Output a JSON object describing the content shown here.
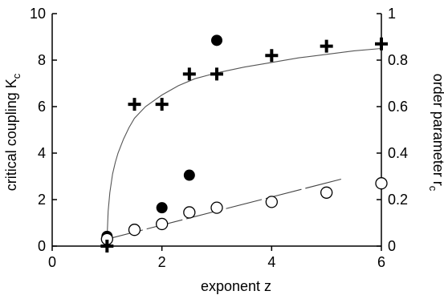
{
  "chart_data": {
    "type": "scatter",
    "xlabel": "exponent z",
    "ylabel_left": {
      "main": "critical coupling K",
      "sub": "c"
    },
    "ylabel_right": {
      "main": "order parameter r",
      "sub": "c"
    },
    "xlim": [
      0,
      6
    ],
    "ylim_left": [
      0,
      10
    ],
    "ylim_right": [
      0,
      1
    ],
    "grid": false,
    "xticks": [
      0,
      2,
      4,
      6
    ],
    "xtick_labels": [
      "0",
      "2",
      "4",
      "6"
    ],
    "yticks_left": [
      0,
      2,
      4,
      6,
      8,
      10
    ],
    "ytick_labels_left": [
      "0",
      "2",
      "4",
      "6",
      "8",
      "10"
    ],
    "yticks_right": [
      0,
      0.2,
      0.4,
      0.6,
      0.8,
      1
    ],
    "ytick_labels_right": [
      "0",
      "0.2",
      "0.4",
      "0.6",
      "0.8",
      "1"
    ],
    "series": [
      {
        "marker": "filled-circle",
        "axis": "left",
        "x": [
          1,
          1.5,
          2,
          2.5,
          3
        ],
        "y": [
          0.42,
          0.72,
          1.65,
          3.05,
          8.85
        ]
      },
      {
        "marker": "open-circle",
        "axis": "left",
        "x": [
          1,
          1.5,
          2,
          2.5,
          3,
          4,
          5,
          6
        ],
        "y": [
          0.3,
          0.7,
          0.95,
          1.45,
          1.65,
          1.9,
          2.3,
          2.7
        ]
      },
      {
        "marker": "plus",
        "axis": "right",
        "x": [
          1,
          1.5,
          2,
          2.5,
          3,
          4,
          5,
          6
        ],
        "y": [
          0.0,
          0.61,
          0.61,
          0.74,
          0.74,
          0.82,
          0.86,
          0.87
        ]
      },
      {
        "marker": "solid-line",
        "axis": "right",
        "x": [
          1.0,
          1.02,
          1.05,
          1.1,
          1.15,
          1.2,
          1.3,
          1.4,
          1.5,
          1.7,
          2.0,
          2.3,
          2.6,
          3.0,
          3.5,
          4.0,
          4.5,
          5.0,
          5.5,
          6.0
        ],
        "y": [
          0.03,
          0.15,
          0.23,
          0.31,
          0.36,
          0.4,
          0.46,
          0.51,
          0.55,
          0.6,
          0.65,
          0.69,
          0.72,
          0.745,
          0.77,
          0.79,
          0.81,
          0.825,
          0.84,
          0.85
        ]
      },
      {
        "marker": "dashed-line",
        "axis": "left",
        "x": [
          1.0,
          5.3
        ],
        "y": [
          0.3,
          2.9
        ]
      }
    ]
  }
}
